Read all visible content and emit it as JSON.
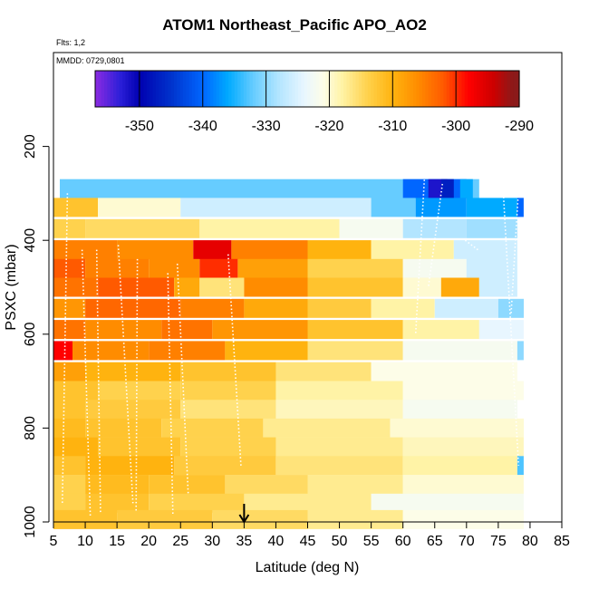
{
  "chart_data": {
    "type": "heatmap",
    "title": "ATOM1 Northeast_Pacific APO_AO2",
    "flights_label": "Flts: 1,2",
    "date_label": "MMDD: 0729,0801",
    "xlabel": "Latitude (deg N)",
    "ylabel": "PSXC (mbar)",
    "xlim": [
      5,
      85
    ],
    "ylim": [
      1000,
      0
    ],
    "x_ticks": [
      5,
      10,
      15,
      20,
      25,
      30,
      35,
      40,
      45,
      50,
      55,
      60,
      65,
      70,
      75,
      80,
      85
    ],
    "y_ticks": [
      200,
      400,
      600,
      800,
      1000
    ],
    "marker_latitude": 35,
    "colorbar": {
      "min": -357,
      "max": -290,
      "ticks": [
        -350,
        -340,
        -330,
        -320,
        -310,
        -300,
        -290
      ],
      "colors": [
        [
          -357,
          "#8b2be2"
        ],
        [
          -353,
          "#2b1fd8"
        ],
        [
          -350,
          "#0000b0"
        ],
        [
          -345,
          "#0033cc"
        ],
        [
          -340,
          "#0066ff"
        ],
        [
          -336,
          "#00aaff"
        ],
        [
          -332,
          "#66ccff"
        ],
        [
          -328,
          "#b3e5ff"
        ],
        [
          -324,
          "#e8f6ff"
        ],
        [
          -321,
          "#fdfde8"
        ],
        [
          -318,
          "#fff3a6"
        ],
        [
          -314,
          "#ffd24d"
        ],
        [
          -310,
          "#ffb30f"
        ],
        [
          -306,
          "#ff8c00"
        ],
        [
          -302,
          "#ff5a00"
        ],
        [
          -298,
          "#ff0000"
        ],
        [
          -294,
          "#cc0000"
        ],
        [
          -291,
          "#8b1a1a"
        ]
      ]
    },
    "rows": [
      {
        "p": 290,
        "cells": [
          [
            6,
            72,
            -332
          ],
          [
            60,
            70,
            -340
          ],
          [
            64,
            67,
            -352
          ],
          [
            66,
            68,
            -347
          ],
          [
            69,
            71,
            -336
          ]
        ]
      },
      {
        "p": 330,
        "cells": [
          [
            5,
            12,
            -312
          ],
          [
            12,
            25,
            -320
          ],
          [
            25,
            55,
            -326
          ],
          [
            55,
            62,
            -332
          ],
          [
            62,
            70,
            -337
          ],
          [
            70,
            78,
            -336
          ],
          [
            78,
            79,
            -340
          ]
        ]
      },
      {
        "p": 375,
        "cells": [
          [
            5,
            10,
            -314
          ],
          [
            10,
            28,
            -315
          ],
          [
            28,
            50,
            -318
          ],
          [
            50,
            60,
            -322
          ],
          [
            60,
            70,
            -328
          ],
          [
            70,
            78,
            -329
          ]
        ]
      },
      {
        "p": 420,
        "cells": [
          [
            5,
            15,
            -305
          ],
          [
            15,
            27,
            -306
          ],
          [
            27,
            33,
            -296
          ],
          [
            33,
            45,
            -305
          ],
          [
            45,
            55,
            -310
          ],
          [
            55,
            68,
            -318
          ],
          [
            68,
            78,
            -326
          ]
        ]
      },
      {
        "p": 460,
        "cells": [
          [
            5,
            10,
            -302
          ],
          [
            10,
            20,
            -305
          ],
          [
            20,
            28,
            -306
          ],
          [
            28,
            34,
            -300
          ],
          [
            34,
            45,
            -308
          ],
          [
            45,
            60,
            -314
          ],
          [
            60,
            70,
            -322
          ],
          [
            70,
            78,
            -326
          ]
        ]
      },
      {
        "p": 500,
        "cells": [
          [
            5,
            12,
            -304
          ],
          [
            12,
            24,
            -302
          ],
          [
            24,
            28,
            -309
          ],
          [
            28,
            35,
            -316
          ],
          [
            35,
            45,
            -306
          ],
          [
            45,
            60,
            -312
          ],
          [
            60,
            66,
            -320
          ],
          [
            66,
            72,
            -309
          ],
          [
            72,
            78,
            -326
          ]
        ]
      },
      {
        "p": 545,
        "cells": [
          [
            5,
            10,
            -307
          ],
          [
            10,
            25,
            -303
          ],
          [
            25,
            35,
            -305
          ],
          [
            35,
            45,
            -309
          ],
          [
            45,
            55,
            -313
          ],
          [
            55,
            65,
            -318
          ],
          [
            65,
            75,
            -326
          ],
          [
            75,
            79,
            -330
          ]
        ]
      },
      {
        "p": 590,
        "cells": [
          [
            5,
            10,
            -304
          ],
          [
            10,
            22,
            -306
          ],
          [
            22,
            30,
            -304
          ],
          [
            30,
            45,
            -307
          ],
          [
            45,
            60,
            -312
          ],
          [
            60,
            72,
            -318
          ],
          [
            72,
            79,
            -324
          ]
        ]
      },
      {
        "p": 635,
        "cells": [
          [
            5,
            8,
            -298
          ],
          [
            8,
            20,
            -306
          ],
          [
            20,
            32,
            -305
          ],
          [
            32,
            45,
            -310
          ],
          [
            45,
            60,
            -316
          ],
          [
            60,
            78,
            -322
          ],
          [
            78,
            79,
            -330
          ]
        ]
      },
      {
        "p": 680,
        "cells": [
          [
            5,
            10,
            -308
          ],
          [
            10,
            25,
            -310
          ],
          [
            25,
            40,
            -312
          ],
          [
            40,
            55,
            -316
          ],
          [
            55,
            78,
            -321
          ]
        ]
      },
      {
        "p": 720,
        "cells": [
          [
            5,
            12,
            -312
          ],
          [
            12,
            25,
            -314
          ],
          [
            25,
            40,
            -314
          ],
          [
            40,
            60,
            -318
          ],
          [
            60,
            79,
            -321
          ]
        ]
      },
      {
        "p": 760,
        "cells": [
          [
            5,
            10,
            -312
          ],
          [
            10,
            25,
            -313
          ],
          [
            25,
            40,
            -316
          ],
          [
            40,
            60,
            -319
          ],
          [
            60,
            78,
            -322
          ]
        ]
      },
      {
        "p": 800,
        "cells": [
          [
            5,
            10,
            -311
          ],
          [
            10,
            22,
            -312
          ],
          [
            22,
            38,
            -314
          ],
          [
            38,
            58,
            -317
          ],
          [
            58,
            79,
            -320
          ]
        ]
      },
      {
        "p": 840,
        "cells": [
          [
            5,
            12,
            -310
          ],
          [
            12,
            25,
            -312
          ],
          [
            25,
            40,
            -314
          ],
          [
            40,
            60,
            -317
          ],
          [
            60,
            79,
            -319
          ]
        ]
      },
      {
        "p": 880,
        "cells": [
          [
            5,
            10,
            -312
          ],
          [
            10,
            24,
            -310
          ],
          [
            24,
            40,
            -313
          ],
          [
            40,
            60,
            -316
          ],
          [
            60,
            78,
            -318
          ],
          [
            78,
            79,
            -333
          ]
        ]
      },
      {
        "p": 920,
        "cells": [
          [
            5,
            10,
            -314
          ],
          [
            10,
            20,
            -311
          ],
          [
            20,
            32,
            -312
          ],
          [
            32,
            45,
            -315
          ],
          [
            45,
            60,
            -317
          ],
          [
            60,
            79,
            -320
          ]
        ]
      },
      {
        "p": 960,
        "cells": [
          [
            5,
            10,
            -314
          ],
          [
            10,
            20,
            -312
          ],
          [
            20,
            35,
            -314
          ],
          [
            35,
            55,
            -317
          ],
          [
            55,
            79,
            -322
          ]
        ]
      },
      {
        "p": 995,
        "cells": [
          [
            5,
            15,
            -312
          ],
          [
            15,
            30,
            -313
          ],
          [
            30,
            45,
            -315
          ],
          [
            45,
            60,
            -317
          ],
          [
            60,
            79,
            -321
          ]
        ]
      }
    ],
    "profiles": [
      {
        "x": [
          7.2,
          6.4
        ],
        "y": [
          300,
          960
        ]
      },
      {
        "x": [
          9.5,
          10.8
        ],
        "y": [
          420,
          990
        ]
      },
      {
        "x": [
          11.8,
          12.4
        ],
        "y": [
          420,
          980
        ]
      },
      {
        "x": [
          15.2,
          17.5
        ],
        "y": [
          410,
          960
        ]
      },
      {
        "x": [
          18.2,
          18.0
        ],
        "y": [
          440,
          980
        ]
      },
      {
        "x": [
          23.0,
          23.8
        ],
        "y": [
          470,
          985
        ]
      },
      {
        "x": [
          24.5,
          26.2
        ],
        "y": [
          450,
          940
        ]
      },
      {
        "x": [
          32.5,
          34.5
        ],
        "y": [
          430,
          880
        ]
      },
      {
        "x": [
          63.5,
          62.0
        ],
        "y": [
          240,
          600
        ]
      },
      {
        "x": [
          66.2,
          64.0
        ],
        "y": [
          280,
          500
        ]
      },
      {
        "x": [
          69.8,
          71.8
        ],
        "y": [
          400,
          420
        ]
      },
      {
        "x": [
          75.8,
          78.2
        ],
        "y": [
          300,
          880
        ]
      },
      {
        "x": [
          78.2,
          77.0
        ],
        "y": [
          290,
          560
        ]
      }
    ]
  }
}
